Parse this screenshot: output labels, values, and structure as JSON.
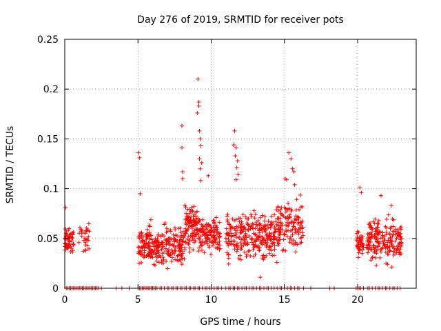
{
  "chart_data": {
    "type": "scatter",
    "title": "Day 276 of 2019, SRMTID for receiver pots",
    "xlabel": "GPS time / hours",
    "ylabel": "SRMTID / TECUs",
    "xlim": [
      0,
      24
    ],
    "ylim": [
      0,
      0.25
    ],
    "grid": true,
    "grid_style": "dotted",
    "marker": "+",
    "color": "#ff0000",
    "x_ticks": [
      0,
      5,
      10,
      15,
      20
    ],
    "x_tick_labels": [
      "0",
      "5",
      "10",
      "15",
      "20"
    ],
    "y_ticks": [
      0,
      0.05,
      0.1,
      0.15,
      0.2,
      0.25
    ],
    "y_tick_labels": [
      "0",
      "0.05",
      "0.1",
      "0.15",
      "0.2",
      "0.25"
    ],
    "clusters": [
      {
        "x_range": [
          0.0,
          0.6
        ],
        "y_range": [
          0.03,
          0.065
        ],
        "count": 60
      },
      {
        "x_range": [
          0.9,
          1.7
        ],
        "y_range": [
          0.033,
          0.068
        ],
        "count": 30
      },
      {
        "x_range": [
          5.0,
          6.0
        ],
        "y_range": [
          0.015,
          0.075
        ],
        "count": 90
      },
      {
        "x_range": [
          6.0,
          8.2
        ],
        "y_range": [
          0.015,
          0.07
        ],
        "count": 180
      },
      {
        "x_range": [
          8.2,
          9.2
        ],
        "y_range": [
          0.03,
          0.09
        ],
        "count": 110
      },
      {
        "x_range": [
          9.2,
          10.6
        ],
        "y_range": [
          0.03,
          0.08
        ],
        "count": 120
      },
      {
        "x_range": [
          11.0,
          14.5
        ],
        "y_range": [
          0.02,
          0.085
        ],
        "count": 280
      },
      {
        "x_range": [
          14.5,
          16.3
        ],
        "y_range": [
          0.025,
          0.1
        ],
        "count": 130
      },
      {
        "x_range": [
          19.9,
          20.4
        ],
        "y_range": [
          0.025,
          0.065
        ],
        "count": 40
      },
      {
        "x_range": [
          20.6,
          23.0
        ],
        "y_range": [
          0.018,
          0.08
        ],
        "count": 200
      }
    ],
    "notable_points": [
      {
        "x": 0.05,
        "y": 0.081
      },
      {
        "x": 5.05,
        "y": 0.136
      },
      {
        "x": 5.1,
        "y": 0.131
      },
      {
        "x": 5.15,
        "y": 0.095
      },
      {
        "x": 8.0,
        "y": 0.163
      },
      {
        "x": 8.0,
        "y": 0.141
      },
      {
        "x": 8.05,
        "y": 0.117
      },
      {
        "x": 8.05,
        "y": 0.11
      },
      {
        "x": 9.1,
        "y": 0.21
      },
      {
        "x": 9.15,
        "y": 0.187
      },
      {
        "x": 9.15,
        "y": 0.183
      },
      {
        "x": 9.05,
        "y": 0.176
      },
      {
        "x": 9.2,
        "y": 0.158
      },
      {
        "x": 9.25,
        "y": 0.15
      },
      {
        "x": 9.3,
        "y": 0.143
      },
      {
        "x": 9.2,
        "y": 0.13
      },
      {
        "x": 9.35,
        "y": 0.126
      },
      {
        "x": 9.25,
        "y": 0.12
      },
      {
        "x": 9.3,
        "y": 0.108
      },
      {
        "x": 9.8,
        "y": 0.113
      },
      {
        "x": 11.6,
        "y": 0.158
      },
      {
        "x": 11.55,
        "y": 0.144
      },
      {
        "x": 11.7,
        "y": 0.141
      },
      {
        "x": 11.65,
        "y": 0.133
      },
      {
        "x": 11.8,
        "y": 0.128
      },
      {
        "x": 11.75,
        "y": 0.121
      },
      {
        "x": 11.85,
        "y": 0.114
      },
      {
        "x": 11.7,
        "y": 0.109
      },
      {
        "x": 15.3,
        "y": 0.136
      },
      {
        "x": 15.45,
        "y": 0.13
      },
      {
        "x": 15.55,
        "y": 0.12
      },
      {
        "x": 15.65,
        "y": 0.117
      },
      {
        "x": 15.05,
        "y": 0.11
      },
      {
        "x": 15.15,
        "y": 0.109
      },
      {
        "x": 15.7,
        "y": 0.104
      },
      {
        "x": 13.35,
        "y": 0.011
      },
      {
        "x": 20.15,
        "y": 0.101
      },
      {
        "x": 20.25,
        "y": 0.096
      },
      {
        "x": 21.6,
        "y": 0.093
      },
      {
        "x": 22.3,
        "y": 0.083
      }
    ],
    "baseline_zero_x": [
      0.1,
      0.2,
      0.3,
      0.4,
      0.5,
      0.6,
      0.7,
      0.8,
      0.9,
      1.0,
      1.1,
      1.2,
      1.3,
      1.4,
      1.5,
      1.6,
      1.7,
      1.8,
      1.9,
      2.0,
      2.1,
      2.2,
      2.3,
      2.5,
      3.5,
      3.9,
      4.4,
      5.0,
      5.1,
      5.2,
      5.3,
      5.4,
      5.5,
      5.6,
      5.7,
      5.8,
      5.9,
      6.0,
      6.1,
      6.2,
      6.3,
      6.5,
      6.6,
      6.8,
      7.0,
      7.1,
      7.3,
      7.4,
      7.6,
      7.7,
      7.9,
      8.0,
      8.2,
      8.3,
      8.5,
      8.6,
      8.8,
      8.9,
      9.1,
      9.2,
      9.4,
      9.6,
      9.7,
      9.9,
      10.0,
      10.2,
      10.4,
      10.5,
      10.7,
      11.0,
      11.2,
      11.3,
      11.5,
      11.6,
      11.8,
      11.9,
      12.1,
      12.3,
      12.4,
      12.6,
      12.8,
      12.9,
      13.1,
      13.3,
      13.4,
      13.6,
      13.8,
      13.9,
      14.1,
      14.3,
      14.5,
      14.7,
      14.8,
      15.0,
      15.2,
      15.4,
      15.5,
      15.7,
      15.9,
      16.0,
      16.3,
      16.8,
      18.1,
      18.4,
      19.9,
      20.0,
      20.1,
      20.2,
      20.4,
      20.7,
      20.8,
      21.0,
      21.2,
      21.4,
      21.5,
      21.7,
      21.9,
      22.0,
      22.2,
      22.4,
      22.5,
      22.7,
      22.9
    ]
  }
}
